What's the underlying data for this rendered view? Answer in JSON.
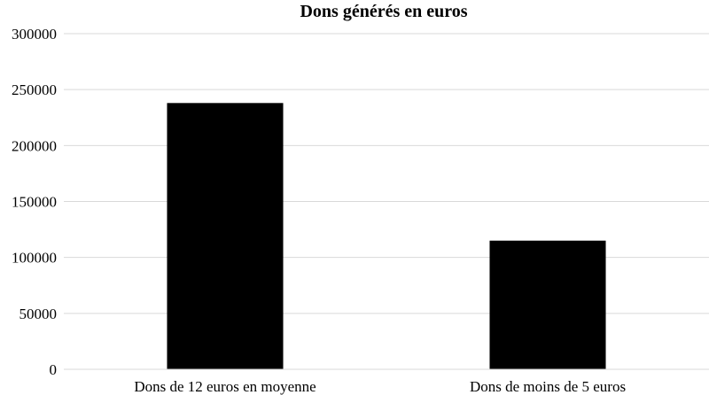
{
  "chart_data": {
    "type": "bar",
    "title": "Dons générés en euros",
    "xlabel": "",
    "ylabel": "",
    "categories": [
      "Dons de 12 euros en moyenne",
      "Dons de moins de 5 euros"
    ],
    "series": [
      {
        "values": [
          238000,
          115000
        ],
        "color": "#000000"
      }
    ],
    "ylim": [
      0,
      300000
    ],
    "yticks": [
      0,
      50000,
      100000,
      150000,
      200000,
      250000,
      300000
    ],
    "ytick_labels": [
      "0",
      "50000",
      "100000",
      "150000",
      "200000",
      "250000",
      "300000"
    ],
    "grid": true,
    "legend": "none",
    "colors": {
      "bar": "#000000",
      "grid": "#d9d9d9",
      "text": "#000000"
    }
  }
}
